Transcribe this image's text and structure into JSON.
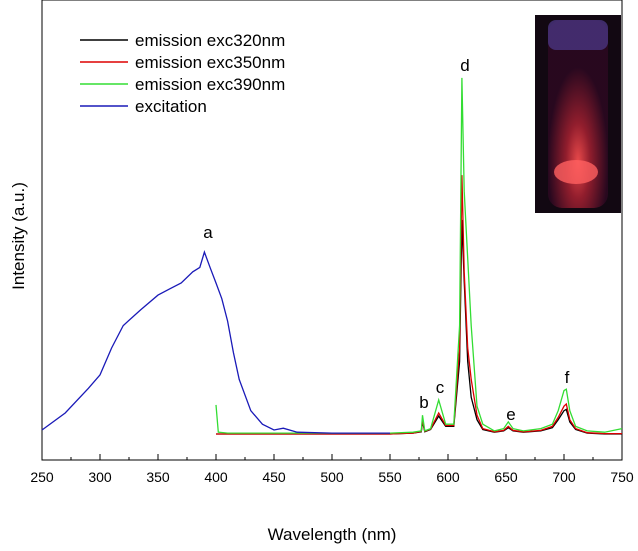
{
  "chart_data": {
    "type": "line",
    "xlabel": "Wavelength (nm)",
    "ylabel": "Intensity (a.u.)",
    "xlim": [
      250,
      750
    ],
    "ylim": [
      0,
      100
    ],
    "xticks": [
      250,
      300,
      350,
      400,
      450,
      500,
      550,
      600,
      650,
      700,
      750
    ],
    "annotations": [
      "a",
      "b",
      "c",
      "d",
      "e",
      "f"
    ],
    "series": [
      {
        "name": "emission exc320nm",
        "color": "#000000",
        "x": [
          400,
          402,
          410,
          450,
          500,
          550,
          570,
          577,
          578,
          580,
          585,
          592,
          598,
          605,
          610,
          612,
          614,
          617,
          620,
          625,
          630,
          640,
          648,
          652,
          656,
          665,
          680,
          690,
          695,
          700,
          702,
          705,
          710,
          720,
          735,
          750
        ],
        "values": [
          5.8,
          5.8,
          5.8,
          5.8,
          5.8,
          5.8,
          6,
          6.3,
          8.5,
          6.3,
          6.8,
          9.8,
          7.5,
          7.5,
          22,
          53.6,
          40,
          22,
          14,
          9,
          6.8,
          6.2,
          6.5,
          7.2,
          6.5,
          6.2,
          6.5,
          7.2,
          9,
          11,
          11.3,
          8.5,
          6.8,
          6,
          5.8,
          5.8
        ]
      },
      {
        "name": "emission exc350nm",
        "color": "#dd0000",
        "x": [
          400,
          402,
          410,
          450,
          500,
          550,
          570,
          577,
          578,
          580,
          585,
          592,
          598,
          605,
          610,
          612,
          614,
          617,
          620,
          625,
          630,
          640,
          648,
          652,
          656,
          665,
          680,
          690,
          695,
          700,
          702,
          705,
          710,
          720,
          735,
          750
        ],
        "values": [
          5.8,
          5.8,
          5.8,
          5.8,
          5.8,
          5.8,
          6,
          6.4,
          9,
          6.4,
          6.9,
          10.5,
          7.7,
          7.7,
          25,
          63.6,
          42,
          25,
          18,
          10,
          7,
          6.3,
          6.6,
          7.5,
          6.6,
          6.3,
          6.6,
          7.5,
          9.5,
          12,
          12.5,
          9,
          7,
          6.1,
          5.9,
          5.9
        ]
      },
      {
        "name": "emission exc390nm",
        "color": "#33dd33",
        "x": [
          400,
          402,
          410,
          450,
          500,
          550,
          570,
          577,
          578,
          580,
          585,
          592,
          598,
          605,
          610,
          612,
          614,
          617,
          620,
          625,
          630,
          640,
          648,
          652,
          656,
          665,
          680,
          690,
          695,
          700,
          702,
          705,
          710,
          720,
          735,
          750
        ],
        "values": [
          12.3,
          6.2,
          6,
          6,
          6,
          6,
          6.2,
          6.5,
          10,
          6.5,
          7,
          13.4,
          8,
          8,
          30,
          85.3,
          60,
          45,
          30,
          12,
          8,
          6.5,
          7,
          8.5,
          7,
          6.5,
          7,
          8,
          11,
          15.5,
          15.8,
          11,
          7.5,
          6.5,
          6.2,
          7
        ]
      },
      {
        "name": "excitation",
        "color": "#1a1ab8",
        "x": [
          250,
          270,
          290,
          300,
          310,
          320,
          335,
          350,
          360,
          370,
          380,
          386,
          390,
          395,
          400,
          405,
          410,
          415,
          420,
          430,
          440,
          450,
          458,
          470,
          500,
          550
        ],
        "values": [
          6.7,
          10.5,
          16,
          19,
          25,
          30,
          33.5,
          36.8,
          38.2,
          39.5,
          42,
          43,
          46.4,
          42.9,
          39.5,
          36,
          31,
          24,
          18,
          11,
          8,
          6.7,
          7.1,
          6.2,
          6,
          6
        ]
      }
    ]
  }
}
